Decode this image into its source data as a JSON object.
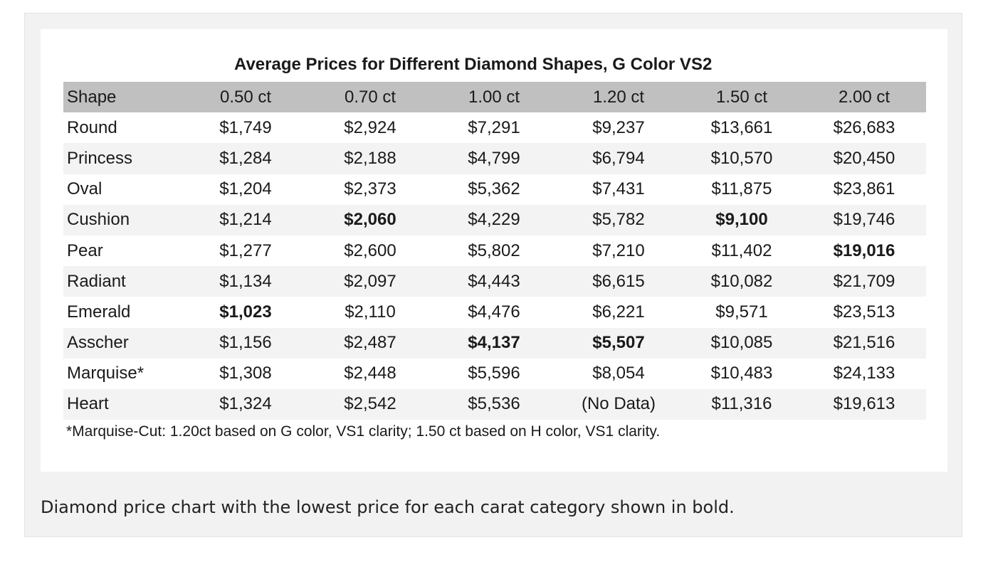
{
  "chart_data": {
    "type": "table",
    "title": "Average Prices for Different Diamond Shapes, G Color VS2",
    "columns": [
      "Shape",
      "0.50 ct",
      "0.70 ct",
      "1.00 ct",
      "1.20 ct",
      "1.50 ct",
      "2.00 ct"
    ],
    "rows": [
      {
        "shape": "Round",
        "values": [
          "$1,749",
          "$2,924",
          "$7,291",
          "$9,237",
          "$13,661",
          "$26,683"
        ],
        "bold": []
      },
      {
        "shape": "Princess",
        "values": [
          "$1,284",
          "$2,188",
          "$4,799",
          "$6,794",
          "$10,570",
          "$20,450"
        ],
        "bold": []
      },
      {
        "shape": "Oval",
        "values": [
          "$1,204",
          "$2,373",
          "$5,362",
          "$7,431",
          "$11,875",
          "$23,861"
        ],
        "bold": []
      },
      {
        "shape": "Cushion",
        "values": [
          "$1,214",
          "$2,060",
          "$4,229",
          "$5,782",
          "$9,100",
          "$19,746"
        ],
        "bold": [
          1,
          4
        ]
      },
      {
        "shape": "Pear",
        "values": [
          "$1,277",
          "$2,600",
          "$5,802",
          "$7,210",
          "$11,402",
          "$19,016"
        ],
        "bold": [
          5
        ]
      },
      {
        "shape": "Radiant",
        "values": [
          "$1,134",
          "$2,097",
          "$4,443",
          "$6,615",
          "$10,082",
          "$21,709"
        ],
        "bold": []
      },
      {
        "shape": "Emerald",
        "values": [
          "$1,023",
          "$2,110",
          "$4,476",
          "$6,221",
          "$9,571",
          "$23,513"
        ],
        "bold": [
          0
        ]
      },
      {
        "shape": "Asscher",
        "values": [
          "$1,156",
          "$2,487",
          "$4,137",
          "$5,507",
          "$10,085",
          "$21,516"
        ],
        "bold": [
          2,
          3
        ]
      },
      {
        "shape": "Marquise*",
        "values": [
          "$1,308",
          "$2,448",
          "$5,596",
          "$8,054",
          "$10,483",
          "$24,133"
        ],
        "bold": []
      },
      {
        "shape": "Heart",
        "values": [
          "$1,324",
          "$2,542",
          "$5,536",
          "(No Data)",
          "$11,316",
          "$19,613"
        ],
        "bold": []
      }
    ],
    "footnote": "*Marquise-Cut: 1.20ct based on G color, VS1 clarity; 1.50 ct based on H color, VS1 clarity.",
    "colors": {
      "header_background": "#c0c0c0",
      "stripe_background": "#f3f3f3",
      "figure_background": "#f2f2f2"
    }
  },
  "caption": "Diamond price chart with the lowest price for each carat category shown in bold."
}
